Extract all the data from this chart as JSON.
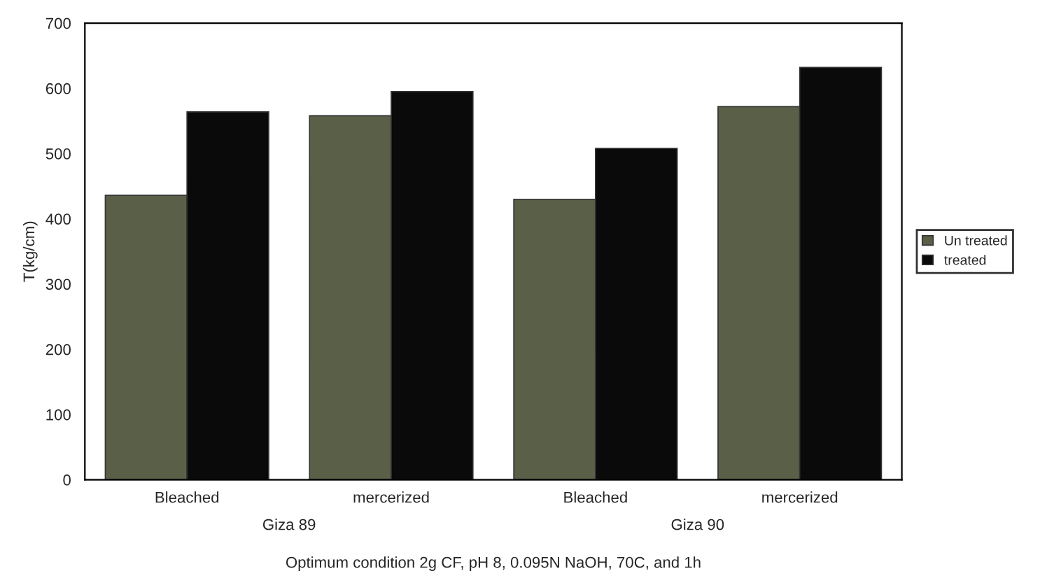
{
  "chart_data": {
    "type": "bar",
    "ylabel": "T(kg/cm)",
    "xlabel": "Optimum condition 2g CF, pH 8, 0.095N NaOH, 70C, and 1h",
    "categories": [
      "Bleached",
      "mercerized",
      "Bleached",
      "mercerized"
    ],
    "series": [
      {
        "name": "Un treated",
        "color": "#5a6048",
        "values": [
          436,
          558,
          430,
          572
        ]
      },
      {
        "name": "treated",
        "color": "#0a0a0a",
        "values": [
          564,
          595,
          508,
          632
        ]
      }
    ],
    "annotations": [
      "Giza 89",
      "Giza 90"
    ],
    "ylim": [
      0,
      700
    ],
    "yticks": [
      0,
      100,
      200,
      300,
      400,
      500,
      600,
      700
    ],
    "grid": false,
    "legend": "right"
  }
}
